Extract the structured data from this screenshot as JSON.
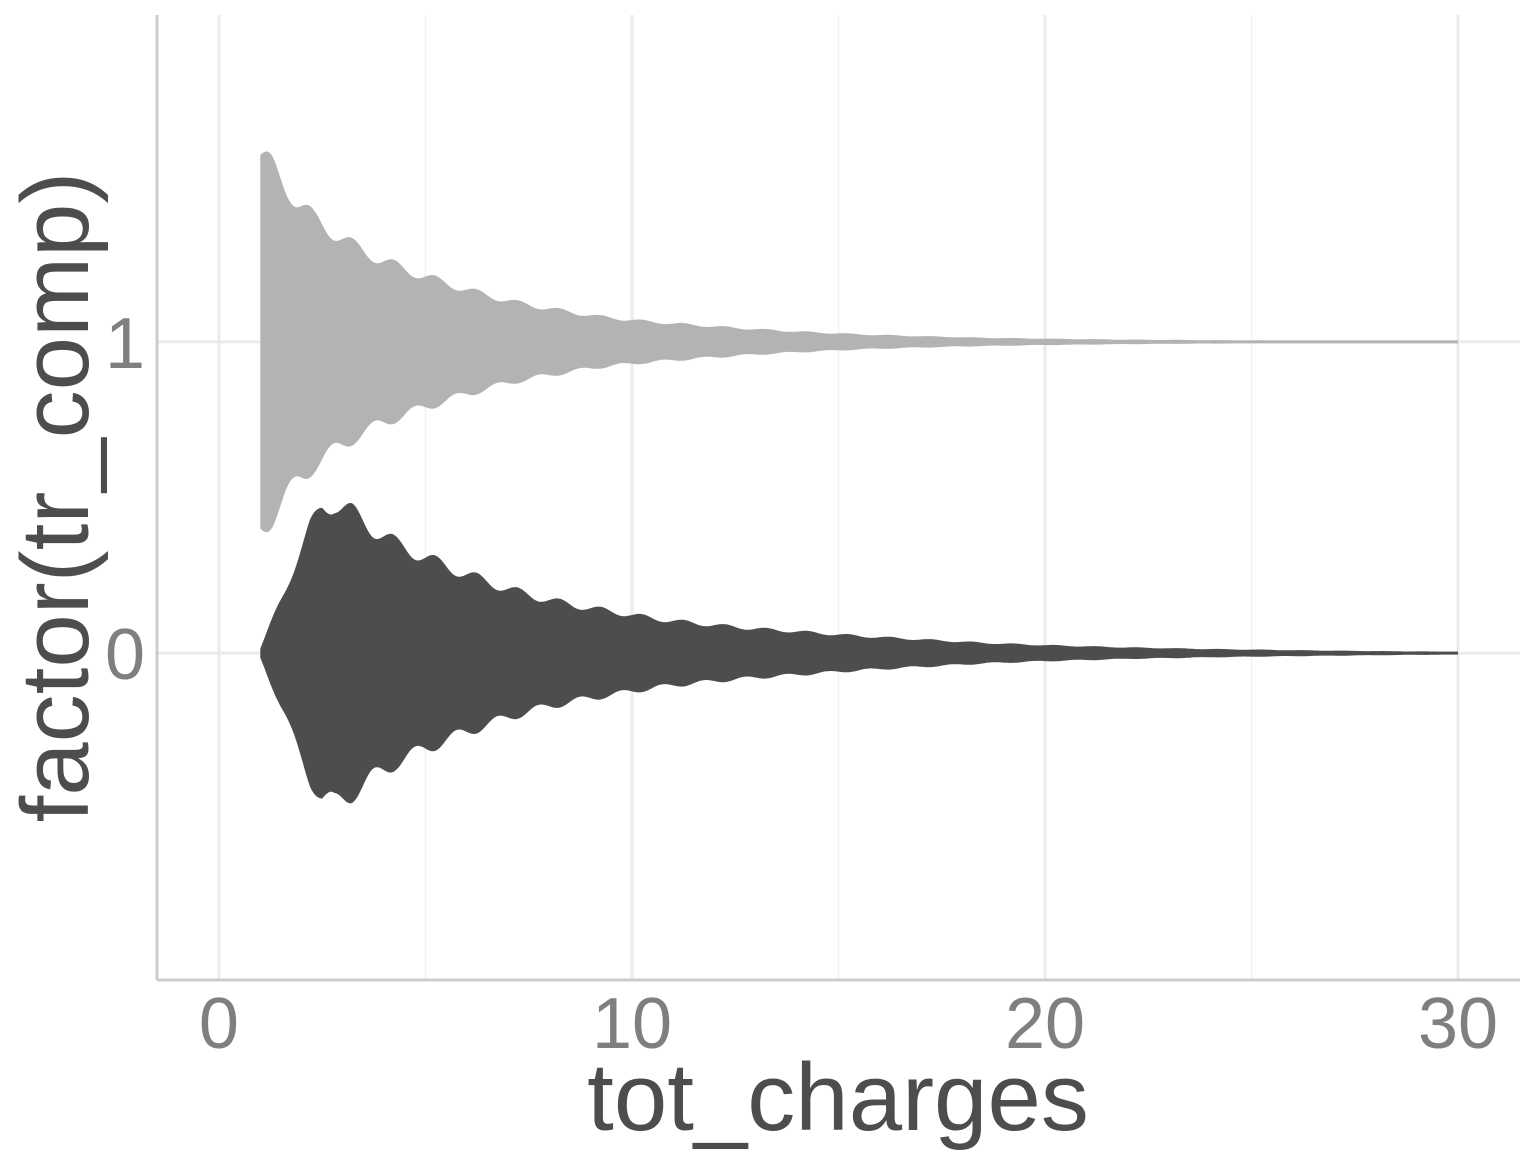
{
  "chart_data": {
    "type": "violin",
    "xlabel": "tot_charges",
    "ylabel": "factor(tr_comp)",
    "xlim": [
      -1.5,
      31.5
    ],
    "x_ticks": [
      0,
      10,
      20,
      30
    ],
    "x_tick_labels": [
      "0",
      "10",
      "20",
      "30"
    ],
    "categories": [
      "0",
      "1"
    ],
    "grid": true,
    "series": [
      {
        "category": "0",
        "color": "#4d4d4d",
        "x_range": [
          1,
          30
        ],
        "half_width_max": 0.73,
        "density_profile": [
          [
            1,
            0.02
          ],
          [
            1.3,
            0.15
          ],
          [
            1.6,
            0.28
          ],
          [
            1.9,
            0.42
          ],
          [
            2.2,
            0.55
          ],
          [
            2.5,
            0.64
          ],
          [
            2.8,
            0.66
          ],
          [
            3.2,
            0.62
          ],
          [
            3.7,
            0.55
          ],
          [
            4.3,
            0.48
          ],
          [
            5,
            0.42
          ],
          [
            5.8,
            0.36
          ],
          [
            6.7,
            0.3
          ],
          [
            7.6,
            0.25
          ],
          [
            8.6,
            0.21
          ],
          [
            9.6,
            0.18
          ],
          [
            10.6,
            0.15
          ],
          [
            11.6,
            0.13
          ],
          [
            12.8,
            0.11
          ],
          [
            14,
            0.095
          ],
          [
            15.5,
            0.075
          ],
          [
            17,
            0.06
          ],
          [
            18.5,
            0.045
          ],
          [
            20,
            0.035
          ],
          [
            22,
            0.025
          ],
          [
            24,
            0.018
          ],
          [
            26,
            0.013
          ],
          [
            28,
            0.009
          ],
          [
            30,
            0.006
          ]
        ]
      },
      {
        "category": "1",
        "color": "#b3b3b3",
        "x_range": [
          1,
          30
        ],
        "half_width_max": 0.6,
        "density_profile": [
          [
            1,
            1.0
          ],
          [
            1.3,
            0.93
          ],
          [
            1.6,
            0.84
          ],
          [
            1.9,
            0.75
          ],
          [
            2.3,
            0.66
          ],
          [
            2.8,
            0.58
          ],
          [
            3.3,
            0.51
          ],
          [
            3.9,
            0.44
          ],
          [
            4.6,
            0.38
          ],
          [
            5.4,
            0.32
          ],
          [
            6.3,
            0.26
          ],
          [
            7.2,
            0.21
          ],
          [
            8.2,
            0.17
          ],
          [
            9.2,
            0.135
          ],
          [
            10.3,
            0.11
          ],
          [
            11.5,
            0.09
          ],
          [
            12.8,
            0.07
          ],
          [
            14,
            0.055
          ],
          [
            15.5,
            0.04
          ],
          [
            17,
            0.03
          ],
          [
            18.5,
            0.022
          ],
          [
            20,
            0.017
          ],
          [
            22,
            0.012
          ],
          [
            24,
            0.009
          ],
          [
            26,
            0.007
          ],
          [
            28,
            0.005
          ],
          [
            30,
            0.004
          ]
        ]
      }
    ]
  }
}
